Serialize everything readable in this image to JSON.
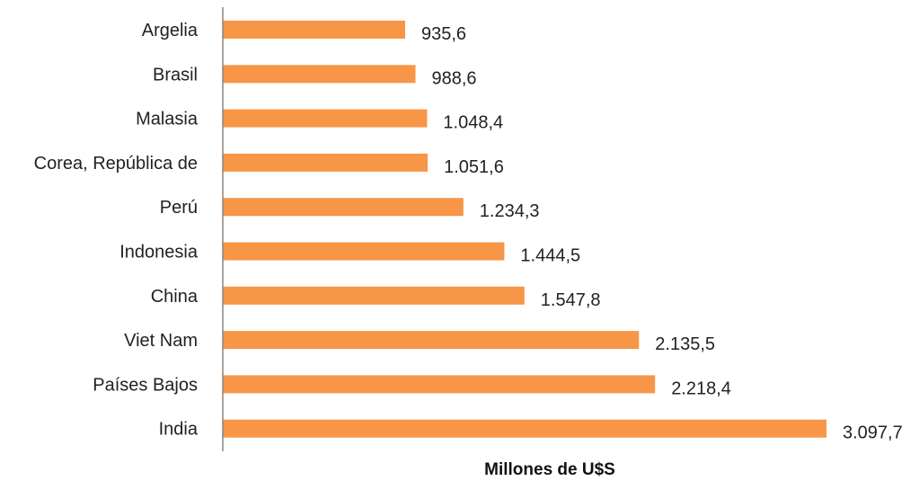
{
  "chart_data": {
    "type": "bar",
    "orientation": "horizontal",
    "categories": [
      "Argelia",
      "Brasil",
      "Malasia",
      "Corea, República de",
      "Perú",
      "Indonesia",
      "China",
      "Viet Nam",
      "Países Bajos",
      "India"
    ],
    "values": [
      935.6,
      988.6,
      1048.4,
      1051.6,
      1234.3,
      1444.5,
      1547.8,
      2135.5,
      2218.4,
      3097.7
    ],
    "data_labels": [
      "935,6",
      "988,6",
      "1.048,4",
      "1.051,6",
      "1.234,3",
      "1.444,5",
      "1.547,8",
      "2.135,5",
      "2.218,4",
      "3.097,7"
    ],
    "xlabel": "Millones de U$S",
    "ylabel": "",
    "bar_color": "#F79646",
    "axis_color": "#868686",
    "grid": false,
    "legend": "none"
  }
}
